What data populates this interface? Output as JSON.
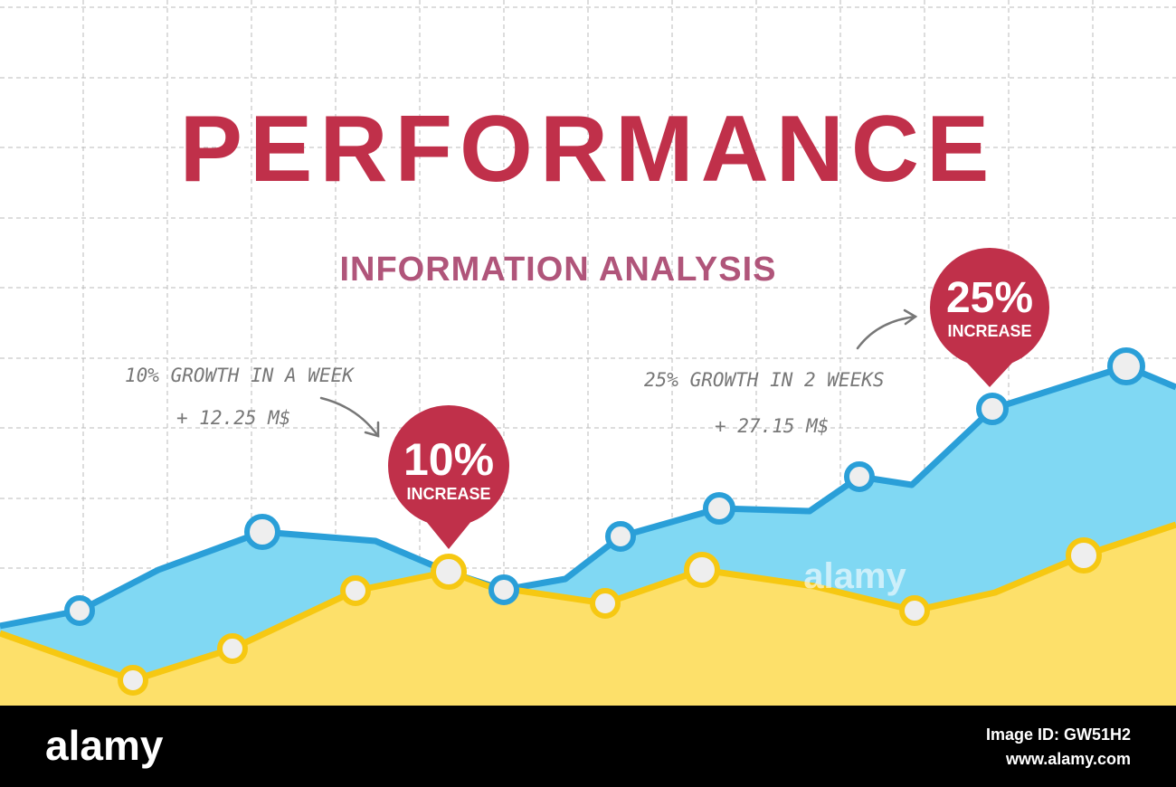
{
  "header": {
    "title": "PERFORMANCE",
    "subtitle": "INFORMATION ANALYSIS"
  },
  "callouts": [
    {
      "value": "10%",
      "label": "INCREASE"
    },
    {
      "value": "25%",
      "label": "INCREASE"
    }
  ],
  "notes": [
    {
      "line1": "10% GROWTH IN A WEEK",
      "line2": "+ 12.25 M$"
    },
    {
      "line1": "25% GROWTH IN 2 WEEKS",
      "line2": "+ 27.15 M$"
    }
  ],
  "watermark": "alamy",
  "footer": {
    "logo": "alamy",
    "image_id": "Image ID: GW51H2",
    "url": "www.alamy.com"
  }
}
